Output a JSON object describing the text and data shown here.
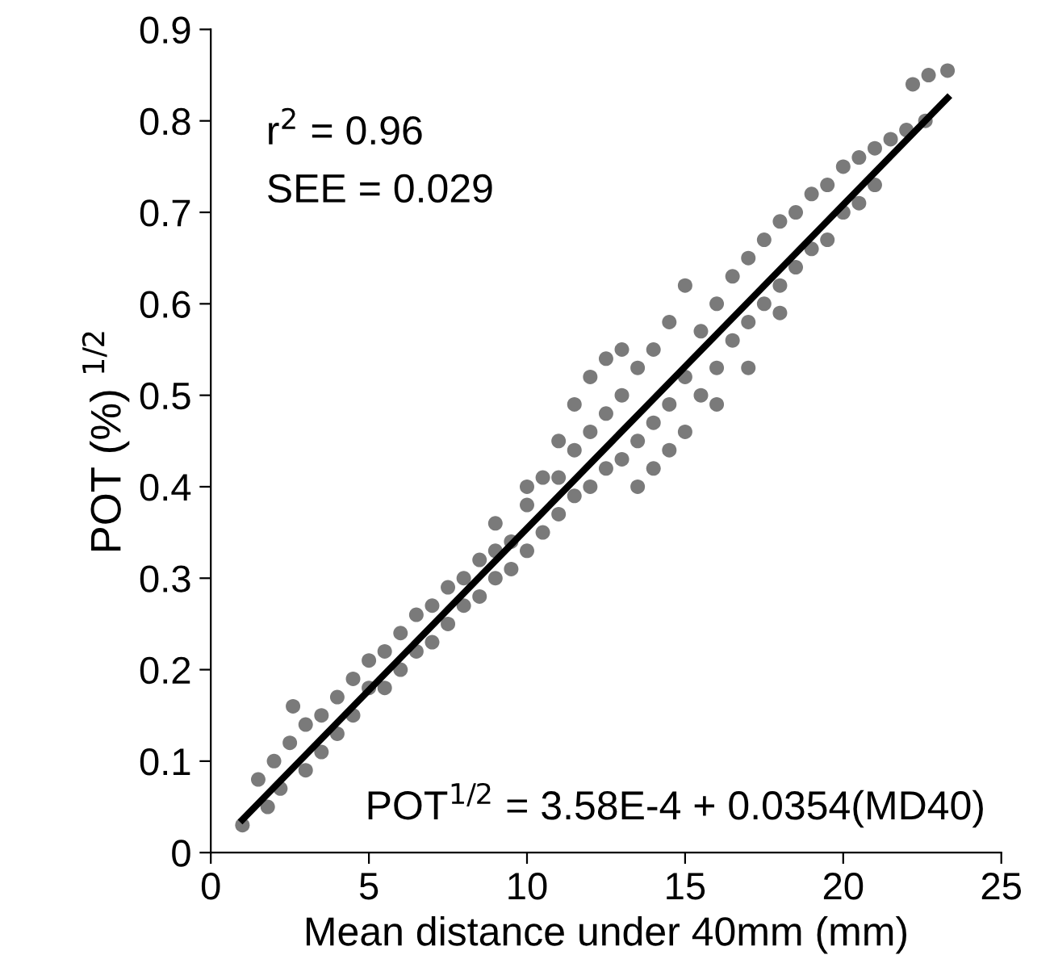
{
  "chart_data": {
    "type": "scatter",
    "xlabel": "Mean distance under 40mm (mm)",
    "ylabel": "POT (%) $^{1/2}$",
    "xlim": [
      0,
      25
    ],
    "xticks": [
      0,
      5,
      10,
      15,
      20,
      25
    ],
    "ylim": [
      0,
      0.9
    ],
    "yticks": [
      0,
      0.1,
      0.2,
      0.3,
      0.4,
      0.5,
      0.6,
      0.7,
      0.8,
      0.9
    ],
    "grid": false,
    "legend": false,
    "annotations": [
      "r$^{2}$ = 0.96",
      "SEE = 0.029",
      "POT$^{1/2}$ = 3.58E-4 + 0.0354(MD40)"
    ],
    "series": [
      {
        "marker": "circle",
        "color": "#7a7a7a",
        "x": [
          1,
          1.5,
          1.8,
          2,
          2.2,
          2.5,
          2.6,
          3,
          3,
          3.5,
          3.5,
          4,
          4,
          4.5,
          4.5,
          5,
          5,
          5.5,
          5.5,
          6,
          6,
          6.5,
          6.5,
          7,
          7,
          7.5,
          7.5,
          8,
          8,
          8.5,
          8.5,
          9,
          9,
          9,
          9.5,
          9.5,
          10,
          10,
          10,
          10.5,
          10.5,
          11,
          11,
          11,
          11.5,
          11.5,
          11.5,
          12,
          12,
          12,
          12.5,
          12.5,
          12.5,
          13,
          13,
          13,
          13.5,
          13.5,
          13.5,
          14,
          14,
          14,
          14.5,
          14.5,
          14.5,
          15,
          15,
          15,
          15.5,
          15.5,
          16,
          16,
          16,
          16.5,
          16.5,
          17,
          17,
          17,
          17.5,
          17.5,
          18,
          18,
          18,
          18.5,
          18.5,
          19,
          19,
          19.5,
          19.5,
          20,
          20,
          20.5,
          20.5,
          21,
          21,
          21.5,
          22,
          22.2,
          22.7,
          23.3,
          22.6
        ],
        "values": [
          0.03,
          0.08,
          0.05,
          0.1,
          0.07,
          0.12,
          0.16,
          0.09,
          0.14,
          0.15,
          0.11,
          0.13,
          0.17,
          0.19,
          0.15,
          0.18,
          0.21,
          0.22,
          0.18,
          0.2,
          0.24,
          0.26,
          0.22,
          0.27,
          0.23,
          0.29,
          0.25,
          0.3,
          0.27,
          0.32,
          0.28,
          0.33,
          0.3,
          0.36,
          0.34,
          0.31,
          0.38,
          0.33,
          0.4,
          0.41,
          0.35,
          0.45,
          0.37,
          0.41,
          0.49,
          0.39,
          0.44,
          0.52,
          0.4,
          0.46,
          0.54,
          0.42,
          0.48,
          0.55,
          0.43,
          0.5,
          0.53,
          0.45,
          0.4,
          0.55,
          0.47,
          0.42,
          0.58,
          0.49,
          0.44,
          0.62,
          0.52,
          0.46,
          0.57,
          0.5,
          0.6,
          0.53,
          0.49,
          0.63,
          0.56,
          0.65,
          0.58,
          0.53,
          0.67,
          0.6,
          0.69,
          0.62,
          0.59,
          0.7,
          0.64,
          0.72,
          0.66,
          0.73,
          0.67,
          0.75,
          0.7,
          0.76,
          0.71,
          0.77,
          0.73,
          0.78,
          0.79,
          0.84,
          0.85,
          0.855,
          0.8
        ]
      },
      {
        "type": "line",
        "marker": "none",
        "color": "#000000",
        "x": [
          1,
          23.3
        ],
        "values": [
          0.036,
          0.825
        ]
      }
    ]
  }
}
